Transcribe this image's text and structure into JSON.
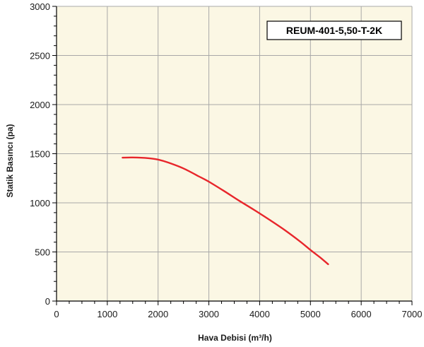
{
  "chart_data": {
    "type": "line",
    "xlabel": "Hava Debisi (m³/h)",
    "ylabel": "Statik Basıncı (pa)",
    "xlim": [
      0,
      7000
    ],
    "ylim": [
      0,
      3000
    ],
    "x_ticks": [
      0,
      1000,
      2000,
      3000,
      4000,
      5000,
      6000,
      7000
    ],
    "y_ticks": [
      0,
      500,
      1000,
      1500,
      2000,
      2500,
      3000
    ],
    "x_tick_labels": [
      "0",
      "1000",
      "2000",
      "3000",
      "4000",
      "5000",
      "6000",
      "7000"
    ],
    "y_tick_labels": [
      "0",
      "500",
      "1000",
      "1500",
      "2000",
      "2500",
      "3000"
    ],
    "grid": true,
    "legend_placement": "top-right",
    "series": [
      {
        "name": "REUM-401-5,50-T-2K",
        "color": "#e8262b",
        "x": [
          1300,
          1500,
          1800,
          2000,
          2200,
          2500,
          2800,
          3000,
          3300,
          3600,
          3900,
          4200,
          4500,
          4800,
          5000,
          5200,
          5350
        ],
        "y": [
          1460,
          1462,
          1455,
          1440,
          1410,
          1350,
          1270,
          1215,
          1120,
          1020,
          925,
          825,
          720,
          605,
          520,
          440,
          375
        ]
      }
    ],
    "colors": {
      "plot_background": "#fbf7e4",
      "grid": "#a8a8a8",
      "axis": "#000000"
    }
  }
}
